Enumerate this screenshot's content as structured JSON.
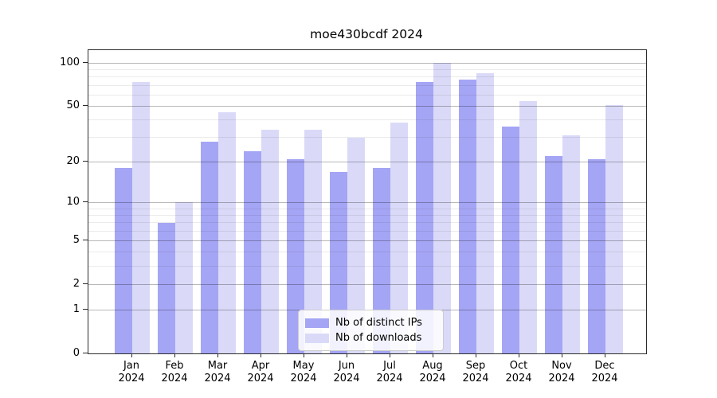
{
  "chart_data": {
    "type": "bar",
    "title": "moe430bcdf 2024",
    "categories": [
      "Jan",
      "Feb",
      "Mar",
      "Apr",
      "May",
      "Jun",
      "Jul",
      "Aug",
      "Sep",
      "Oct",
      "Nov",
      "Dec"
    ],
    "category_year": "2024",
    "series": [
      {
        "name": "Nb of distinct IPs",
        "color": "#a5a5f5",
        "values": [
          18,
          7,
          28,
          24,
          21,
          17,
          18,
          74,
          77,
          36,
          22,
          21
        ]
      },
      {
        "name": "Nb of downloads",
        "color": "#dadaf8",
        "values": [
          74,
          10,
          45,
          34,
          34,
          30,
          38,
          100,
          85,
          54,
          31,
          51
        ]
      }
    ],
    "yscale": "log1p",
    "ylim": [
      0,
      123
    ],
    "yticks": [
      0,
      1,
      2,
      5,
      10,
      20,
      50,
      100
    ],
    "minor_gridlines": [
      3,
      4,
      6,
      7,
      8,
      9,
      30,
      40,
      60,
      70,
      80,
      90
    ],
    "grid": "horizontal",
    "legend_position": "bottom-center"
  }
}
